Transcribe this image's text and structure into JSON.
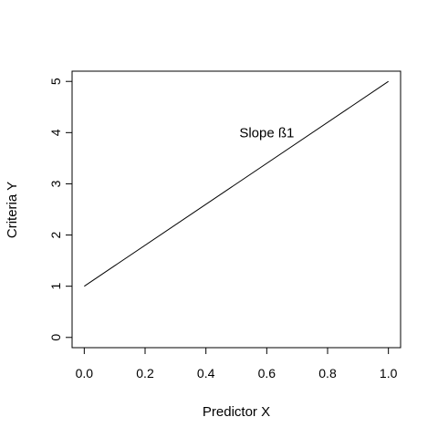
{
  "chart_data": {
    "type": "line",
    "title": "",
    "xlabel": "Predictor X",
    "ylabel": "Criteria Y",
    "xlim": [
      -0.04,
      1.04
    ],
    "ylim": [
      -0.2,
      5.2
    ],
    "xticks": [
      0.0,
      0.2,
      0.4,
      0.6,
      0.8,
      1.0
    ],
    "xtick_labels": [
      "0.0",
      "0.2",
      "0.4",
      "0.6",
      "0.8",
      "1.0"
    ],
    "yticks": [
      0,
      1,
      2,
      3,
      4,
      5
    ],
    "ytick_labels": [
      "0",
      "1",
      "2",
      "3",
      "4",
      "5"
    ],
    "grid": false,
    "series": [
      {
        "x": [
          0.0,
          1.0
        ],
        "y": [
          1,
          5
        ]
      }
    ],
    "annotations": [
      {
        "text": "Slope ß1",
        "x": 0.51,
        "y": 4.0
      }
    ],
    "line_color": "#000000"
  }
}
